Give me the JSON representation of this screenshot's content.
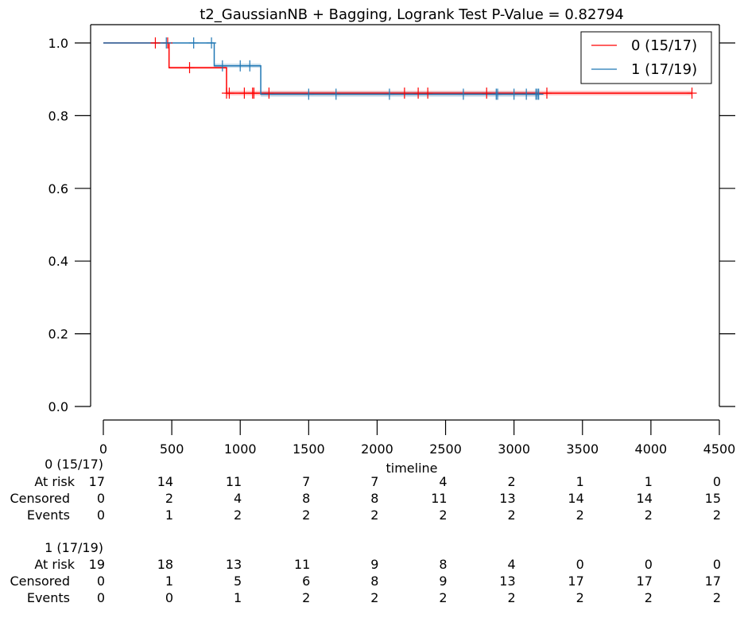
{
  "chart_data": {
    "type": "line",
    "title": "t2_GaussianNB + Bagging, Logrank Test P-Value = 0.82794",
    "xlabel": "timeline",
    "ylabel": "",
    "xlim": [
      0,
      4500
    ],
    "ylim": [
      0,
      1.05
    ],
    "x_ticks": [
      "0",
      "500",
      "1000",
      "1500",
      "2000",
      "2500",
      "3000",
      "3500",
      "4000",
      "4500"
    ],
    "y_ticks": [
      "0.0",
      "0.2",
      "0.4",
      "0.6",
      "0.8",
      "1.0"
    ],
    "legend_position": "top-right",
    "grid": false,
    "series": [
      {
        "name": "0 (15/17)",
        "color": "#ff0000",
        "steps": [
          [
            0,
            1.0
          ],
          [
            480,
            0.932
          ],
          [
            900,
            0.862
          ],
          [
            4300,
            0.862
          ]
        ],
        "ci_band": [
          [
            0,
            1.0,
            1.0
          ],
          [
            480,
            0.929,
            0.935
          ],
          [
            900,
            0.856,
            0.868
          ],
          [
            4300,
            0.856,
            0.868
          ]
        ],
        "censor_times": [
          380,
          470,
          630,
          900,
          920,
          1030,
          1090,
          1100,
          1210,
          2200,
          2300,
          2370,
          2800,
          3240,
          4300
        ]
      },
      {
        "name": "1 (17/19)",
        "color": "#1f77b4",
        "steps": [
          [
            0,
            1.0
          ],
          [
            810,
            0.937
          ],
          [
            1150,
            0.859
          ],
          [
            3180,
            0.859
          ]
        ],
        "ci_band": [
          [
            0,
            1.0,
            1.0
          ],
          [
            810,
            0.932,
            0.943
          ],
          [
            1150,
            0.852,
            0.866
          ],
          [
            3180,
            0.852,
            0.866
          ]
        ],
        "censor_times": [
          460,
          660,
          790,
          870,
          1000,
          1070,
          1500,
          1700,
          2090,
          2630,
          2870,
          2880,
          3000,
          3090,
          3160,
          3170,
          3180
        ]
      }
    ],
    "risk_table": {
      "times": [
        0,
        500,
        1000,
        1500,
        2000,
        2500,
        3000,
        3500,
        4000,
        4500
      ],
      "row_labels": [
        "At risk",
        "Censored",
        "Events"
      ],
      "groups": [
        {
          "name": "0 (15/17)",
          "at_risk": [
            "17",
            "14",
            "11",
            "7",
            "7",
            "4",
            "2",
            "1",
            "1",
            "0"
          ],
          "censored": [
            "0",
            "2",
            "4",
            "8",
            "8",
            "11",
            "13",
            "14",
            "14",
            "15"
          ],
          "events": [
            "0",
            "1",
            "2",
            "2",
            "2",
            "2",
            "2",
            "2",
            "2",
            "2"
          ]
        },
        {
          "name": "1 (17/19)",
          "at_risk": [
            "19",
            "18",
            "13",
            "11",
            "9",
            "8",
            "4",
            "0",
            "0",
            "0"
          ],
          "censored": [
            "0",
            "1",
            "5",
            "6",
            "8",
            "9",
            "13",
            "17",
            "17",
            "17"
          ],
          "events": [
            "0",
            "0",
            "1",
            "2",
            "2",
            "2",
            "2",
            "2",
            "2",
            "2"
          ]
        }
      ]
    }
  }
}
